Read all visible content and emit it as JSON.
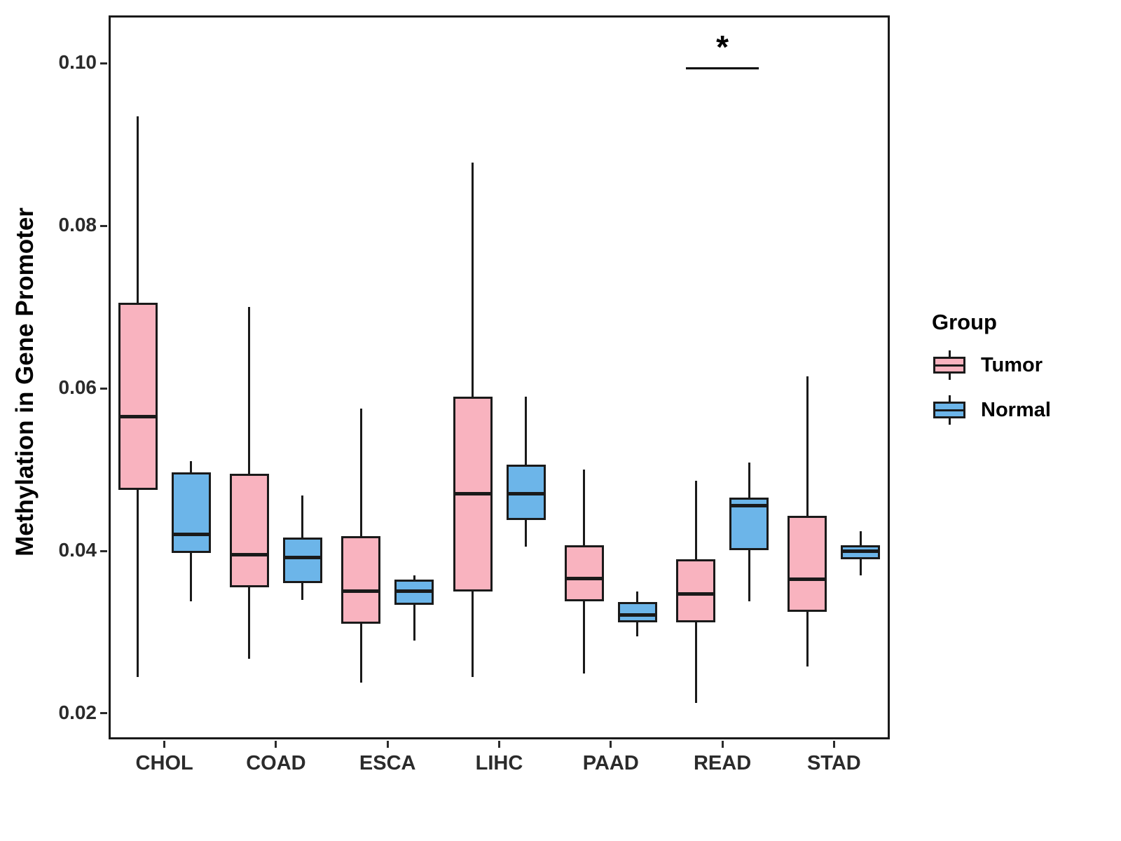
{
  "chart_data": {
    "type": "boxplot",
    "title": "",
    "xlabel": "",
    "ylabel": "Methylation in Gene Promoter",
    "ylim": [
      0.0168,
      0.1059
    ],
    "yticks": [
      0.02,
      0.04,
      0.06,
      0.08,
      0.1
    ],
    "categories": [
      "CHOL",
      "COAD",
      "ESCA",
      "LIHC",
      "PAAD",
      "READ",
      "STAD"
    ],
    "grid": "off",
    "legend": {
      "title": "Group",
      "position": "right",
      "entries": [
        {
          "label": "Tumor",
          "color": "#F9B3BF"
        },
        {
          "label": "Normal",
          "color": "#6CB5E9"
        }
      ]
    },
    "series": [
      {
        "name": "Tumor",
        "color": "#F9B3BF",
        "boxes": [
          {
            "category": "CHOL",
            "min": 0.0245,
            "q1": 0.0475,
            "median": 0.0565,
            "q3": 0.0705,
            "max": 0.0935
          },
          {
            "category": "COAD",
            "min": 0.0267,
            "q1": 0.0355,
            "median": 0.0395,
            "q3": 0.0495,
            "max": 0.07
          },
          {
            "category": "ESCA",
            "min": 0.0238,
            "q1": 0.031,
            "median": 0.035,
            "q3": 0.0418,
            "max": 0.0575
          },
          {
            "category": "LIHC",
            "min": 0.0245,
            "q1": 0.035,
            "median": 0.047,
            "q3": 0.059,
            "max": 0.0878
          },
          {
            "category": "PAAD",
            "min": 0.0249,
            "q1": 0.0338,
            "median": 0.0366,
            "q3": 0.0407,
            "max": 0.05
          },
          {
            "category": "READ",
            "min": 0.0213,
            "q1": 0.0312,
            "median": 0.0347,
            "q3": 0.039,
            "max": 0.0486
          },
          {
            "category": "STAD",
            "min": 0.0258,
            "q1": 0.0325,
            "median": 0.0365,
            "q3": 0.0443,
            "max": 0.0615
          }
        ]
      },
      {
        "name": "Normal",
        "color": "#6CB5E9",
        "boxes": [
          {
            "category": "CHOL",
            "min": 0.0338,
            "q1": 0.0397,
            "median": 0.042,
            "q3": 0.0497,
            "max": 0.051
          },
          {
            "category": "COAD",
            "min": 0.034,
            "q1": 0.036,
            "median": 0.0392,
            "q3": 0.0416,
            "max": 0.0468
          },
          {
            "category": "ESCA",
            "min": 0.029,
            "q1": 0.0334,
            "median": 0.035,
            "q3": 0.0365,
            "max": 0.037
          },
          {
            "category": "LIHC",
            "min": 0.0405,
            "q1": 0.0438,
            "median": 0.047,
            "q3": 0.0506,
            "max": 0.059
          },
          {
            "category": "PAAD",
            "min": 0.0295,
            "q1": 0.0312,
            "median": 0.0321,
            "q3": 0.0337,
            "max": 0.035
          },
          {
            "category": "READ",
            "min": 0.0338,
            "q1": 0.0401,
            "median": 0.0456,
            "q3": 0.0466,
            "max": 0.0509
          },
          {
            "category": "STAD",
            "min": 0.037,
            "q1": 0.039,
            "median": 0.04,
            "q3": 0.0407,
            "max": 0.0424
          }
        ]
      }
    ],
    "annotation": {
      "label": "*",
      "category": "READ",
      "y": 0.0995
    }
  }
}
